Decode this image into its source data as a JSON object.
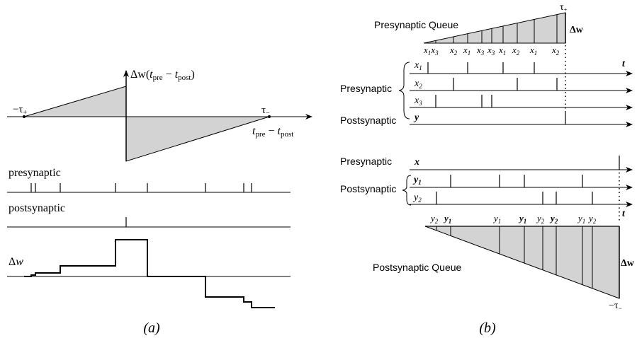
{
  "colors": {
    "ink": "#000000",
    "fill": "#d3d3d3",
    "paper": "#ffffff"
  },
  "panel_a": {
    "caption": "(a)",
    "axis_main": "Δw(",
    "axis_t_pre": "t",
    "axis_pre_sub": "pre",
    "axis_minus": " − ",
    "axis_t_post": "t",
    "axis_post_sub": "post",
    "axis_close": ")",
    "tau_plus_neg": "−τ",
    "tau_plus_sub": "+",
    "tau_minus": "τ",
    "tau_minus_sub": "−",
    "x_t_pre": "t",
    "x_pre_sub": "pre",
    "x_minus": " − ",
    "x_t_post": "t",
    "x_post_sub": "post",
    "presynaptic": "presynaptic",
    "postsynaptic": "postsynaptic",
    "dw": "Δ",
    "dw_var": "w"
  },
  "panel_b": {
    "caption": "(b)",
    "pre_queue_title": "Presynaptic Queue",
    "tau_plus": "τ",
    "tau_plus_sub": "+",
    "dw_top": "Δw",
    "pre_queue_labels": [
      "x1x3",
      "x2",
      "x1",
      "x3",
      "x3",
      "x1",
      "x2",
      "x1",
      "x2"
    ],
    "t_label": "t",
    "presynaptic_group": "Presynaptic",
    "x1": "x",
    "x1_sub": "1",
    "x2": "x",
    "x2_sub": "2",
    "x3": "x",
    "x3_sub": "3",
    "postsynaptic_top": "Postsynaptic",
    "y": "y",
    "presynaptic_bottom": "Presynaptic",
    "x": "x",
    "postsynaptic_group": "Postsynaptic",
    "y1": "y",
    "y1_sub": "1",
    "y2": "y",
    "y2_sub": "2",
    "t_label_bottom": "t",
    "post_queue_labels": [
      {
        "v": "y",
        "s": "2",
        "b": false
      },
      {
        "v": "y",
        "s": "1",
        "b": true
      },
      {
        "v": "y",
        "s": "1",
        "b": false
      },
      {
        "v": "y",
        "s": "1",
        "b": true
      },
      {
        "v": "y",
        "s": "2",
        "b": false
      },
      {
        "v": "y",
        "s": "2",
        "b": true
      },
      {
        "v": "y",
        "s": "1",
        "b": false
      },
      {
        "v": "y",
        "s": "2",
        "b": false
      }
    ],
    "post_queue_title": "Postsynaptic Queue",
    "dw_bottom": "Δw",
    "tau_minus_neg": "−τ",
    "tau_minus_sub": "−"
  }
}
